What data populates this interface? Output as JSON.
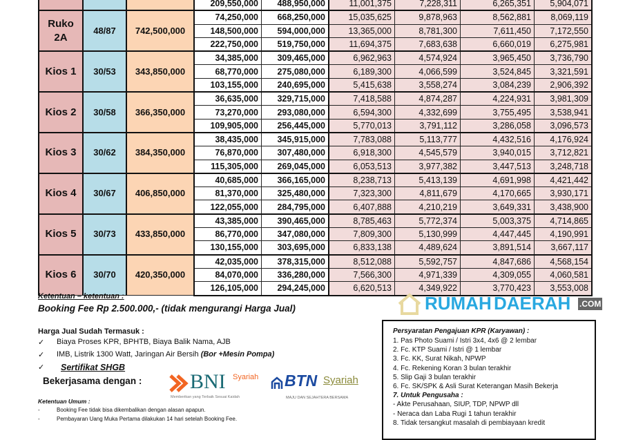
{
  "table": {
    "partial_row": {
      "dp": "209,550,000",
      "remaining": "488,950,000",
      "monthly": [
        "11,001,375",
        "7,228,311",
        "6,265,351",
        "5,904,071"
      ]
    },
    "groups": [
      {
        "type": "Ruko 2A",
        "size": "48/87",
        "price": "742,500,000",
        "rows": [
          {
            "dp": "74,250,000",
            "remaining": "668,250,000",
            "monthly": [
              "15,035,625",
              "9,878,963",
              "8,562,881",
              "8,069,119"
            ]
          },
          {
            "dp": "148,500,000",
            "remaining": "594,000,000",
            "monthly": [
              "13,365,000",
              "8,781,300",
              "7,611,450",
              "7,172,550"
            ]
          },
          {
            "dp": "222,750,000",
            "remaining": "519,750,000",
            "monthly": [
              "11,694,375",
              "7,683,638",
              "6,660,019",
              "6,275,981"
            ]
          }
        ]
      },
      {
        "type": "Kios 1",
        "size": "30/53",
        "price": "343,850,000",
        "rows": [
          {
            "dp": "34,385,000",
            "remaining": "309,465,000",
            "monthly": [
              "6,962,963",
              "4,574,924",
              "3,965,450",
              "3,736,790"
            ]
          },
          {
            "dp": "68,770,000",
            "remaining": "275,080,000",
            "monthly": [
              "6,189,300",
              "4,066,599",
              "3,524,845",
              "3,321,591"
            ]
          },
          {
            "dp": "103,155,000",
            "remaining": "240,695,000",
            "monthly": [
              "5,415,638",
              "3,558,274",
              "3,084,239",
              "2,906,392"
            ]
          }
        ]
      },
      {
        "type": "Kios 2",
        "size": "30/58",
        "price": "366,350,000",
        "rows": [
          {
            "dp": "36,635,000",
            "remaining": "329,715,000",
            "monthly": [
              "7,418,588",
              "4,874,287",
              "4,224,931",
              "3,981,309"
            ]
          },
          {
            "dp": "73,270,000",
            "remaining": "293,080,000",
            "monthly": [
              "6,594,300",
              "4,332,699",
              "3,755,495",
              "3,538,941"
            ]
          },
          {
            "dp": "109,905,000",
            "remaining": "256,445,000",
            "monthly": [
              "5,770,013",
              "3,791,112",
              "3,286,058",
              "3,096,573"
            ]
          }
        ]
      },
      {
        "type": "Kios 3",
        "size": "30/62",
        "price": "384,350,000",
        "rows": [
          {
            "dp": "38,435,000",
            "remaining": "345,915,000",
            "monthly": [
              "7,783,088",
              "5,113,777",
              "4,432,516",
              "4,176,924"
            ]
          },
          {
            "dp": "76,870,000",
            "remaining": "307,480,000",
            "monthly": [
              "6,918,300",
              "4,545,579",
              "3,940,015",
              "3,712,821"
            ]
          },
          {
            "dp": "115,305,000",
            "remaining": "269,045,000",
            "monthly": [
              "6,053,513",
              "3,977,382",
              "3,447,513",
              "3,248,718"
            ]
          }
        ]
      },
      {
        "type": "Kios 4",
        "size": "30/67",
        "price": "406,850,000",
        "rows": [
          {
            "dp": "40,685,000",
            "remaining": "366,165,000",
            "monthly": [
              "8,238,713",
              "5,413,139",
              "4,691,998",
              "4,421,442"
            ]
          },
          {
            "dp": "81,370,000",
            "remaining": "325,480,000",
            "monthly": [
              "7,323,300",
              "4,811,679",
              "4,170,665",
              "3,930,171"
            ]
          },
          {
            "dp": "122,055,000",
            "remaining": "284,795,000",
            "monthly": [
              "6,407,888",
              "4,210,219",
              "3,649,331",
              "3,438,900"
            ]
          }
        ]
      },
      {
        "type": "Kios 5",
        "size": "30/73",
        "price": "433,850,000",
        "rows": [
          {
            "dp": "43,385,000",
            "remaining": "390,465,000",
            "monthly": [
              "8,785,463",
              "5,772,374",
              "5,003,375",
              "4,714,865"
            ]
          },
          {
            "dp": "86,770,000",
            "remaining": "347,080,000",
            "monthly": [
              "7,809,300",
              "5,130,999",
              "4,447,445",
              "4,190,991"
            ]
          },
          {
            "dp": "130,155,000",
            "remaining": "303,695,000",
            "monthly": [
              "6,833,138",
              "4,489,624",
              "3,891,514",
              "3,667,117"
            ]
          }
        ]
      },
      {
        "type": "Kios 6",
        "size": "30/70",
        "price": "420,350,000",
        "rows": [
          {
            "dp": "42,035,000",
            "remaining": "378,315,000",
            "monthly": [
              "8,512,088",
              "5,592,757",
              "4,847,686",
              "4,568,154"
            ]
          },
          {
            "dp": "84,070,000",
            "remaining": "336,280,000",
            "monthly": [
              "7,566,300",
              "4,971,339",
              "4,309,055",
              "4,060,581"
            ]
          },
          {
            "dp": "126,105,000",
            "remaining": "294,245,000",
            "monthly": [
              "6,620,513",
              "4,349,922",
              "3,770,423",
              "3,553,008"
            ]
          }
        ]
      }
    ]
  },
  "terms": {
    "heading": "Ketentuan  – ketentuan :",
    "booking_fee": "Booking Fee Rp 2.500.000,- (tidak mengurangi Harga Jual)",
    "includes_heading": "Harga Jual Sudah Termasuk :",
    "includes": [
      {
        "text": "Biaya Proses KPR, BPHTB, Biaya Balik Nama, AJB",
        "extra": ""
      },
      {
        "text": "IMB, Listrik 1300 Watt, Jaringan Air Bersih ",
        "extra": "(Bor +Mesin Pompa)"
      },
      {
        "text": "",
        "extra": "Sertifikat SHGB"
      }
    ],
    "check": "✓",
    "partner_label": "Bekerjasama dengan  :",
    "general_heading": "Ketentuan Umum :",
    "general": [
      "Booking Fee tidak bisa dikembalikan dengan alasan apapun.",
      "Pembayaran Uang Muka Pertama dilakukan 14 hari setelah Booking Fee."
    ]
  },
  "partners": {
    "bni": {
      "name": "BNI",
      "sub": "Syariah",
      "tagline": "Memberikan yang Terbaik Sesuai Kaidah",
      "color": "#1a6a74",
      "accent": "#f26522"
    },
    "btn": {
      "name": "BTN",
      "sub": "Syariah",
      "tagline": "MAJU DAN SEJAHTERA BERSAMA",
      "color": "#1b4aa0",
      "accent": "#8a8a3a"
    }
  },
  "kpr": {
    "heading": "Persyaratan Pengajuan KPR (Karyawan) :",
    "items": [
      " 1. Pas Photo Suami / Istri 3x4, 4x6 @ 2 lembar",
      "2.  Fc. KTP Suami / Istri @ 1 lembar",
      "3.  Fc. KK, Surat Nikah, NPWP",
      "4.  Fc. Rekening Koran 3 bulan terakhir",
      "5.  Slip Gaji 3 bulan terakhir",
      "6.  Fc. SK/SPK & Asli Surat Keterangan Masih Bekerja",
      "7.  Untuk Pengusaha :",
      " -  Akte Perusahaan, SIUP, TDP, NPWP dll",
      " -  Neraca dan Laba Rugi 1 tahun terakhir",
      "8.  Tidak tersangkut masalah di pembiayaan kredit"
    ]
  },
  "watermark": {
    "line1": "RUMAH",
    "line2": "DAERAH",
    "suffix": ".COM",
    "color": "#29a8e0"
  }
}
